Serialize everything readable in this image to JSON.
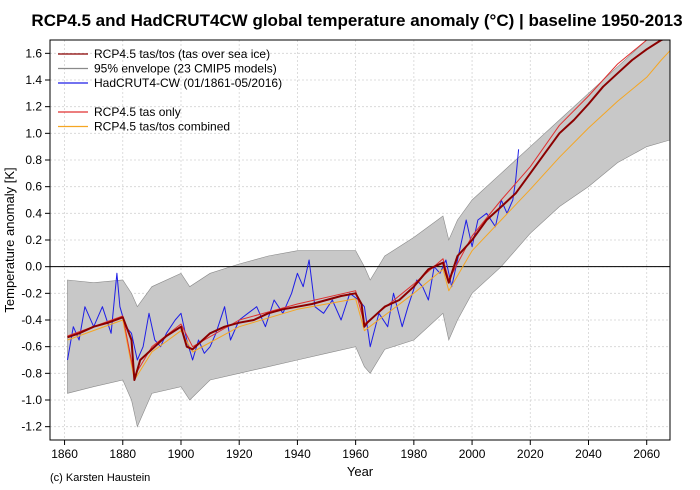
{
  "chart_data": {
    "type": "line",
    "title": "RCP4.5 and HadCRUT4CW global temperature anomaly (°C) | baseline 1950-2013",
    "xlabel": "Year",
    "ylabel": "Temperature anomaly [K]",
    "xlim": [
      1855,
      2068
    ],
    "ylim": [
      -1.3,
      1.7
    ],
    "xticks": [
      1860,
      1880,
      1900,
      1920,
      1940,
      1960,
      1980,
      2000,
      2020,
      2040,
      2060
    ],
    "yticks": [
      -1.2,
      -1.0,
      -0.8,
      -0.6,
      -0.4,
      -0.2,
      0.0,
      0.2,
      0.4,
      0.6,
      0.8,
      1.0,
      1.2,
      1.4,
      1.6
    ],
    "ytick_labels": [
      "-1.2",
      "-1.0",
      "-0.8",
      "-0.6",
      "-0.4",
      "-0.2",
      "0.0",
      "0.2",
      "0.4",
      "0.6",
      "0.8",
      "1.0",
      "1.2",
      "1.4",
      "1.6"
    ],
    "grid": true,
    "zero_line": true,
    "legend_position": "top-left",
    "credit": "(c) Karsten Haustein",
    "envelope": {
      "name": "95% envelope (23 CMIP5 models)",
      "color": "#c8c8c8",
      "x": [
        1861,
        1870,
        1880,
        1883,
        1885,
        1890,
        1900,
        1903,
        1910,
        1920,
        1930,
        1940,
        1950,
        1960,
        1963,
        1965,
        1970,
        1980,
        1990,
        1992,
        1995,
        2000,
        2010,
        2020,
        2030,
        2040,
        2050,
        2060,
        2068
      ],
      "upper": [
        -0.1,
        -0.12,
        -0.1,
        -0.2,
        -0.3,
        -0.15,
        -0.05,
        -0.15,
        -0.05,
        0.02,
        0.08,
        0.12,
        0.12,
        0.12,
        0.0,
        -0.1,
        0.08,
        0.22,
        0.38,
        0.2,
        0.35,
        0.5,
        0.7,
        0.9,
        1.1,
        1.3,
        1.5,
        1.7,
        1.7
      ],
      "lower": [
        -0.95,
        -0.9,
        -0.85,
        -1.0,
        -1.2,
        -0.95,
        -0.9,
        -1.0,
        -0.85,
        -0.8,
        -0.75,
        -0.7,
        -0.65,
        -0.6,
        -0.75,
        -0.8,
        -0.62,
        -0.55,
        -0.35,
        -0.55,
        -0.4,
        -0.2,
        0.0,
        0.25,
        0.45,
        0.6,
        0.78,
        0.9,
        0.95
      ]
    },
    "series": [
      {
        "name": "RCP4.5 tas/tos (tas over sea ice)",
        "color": "#8b0000",
        "width": 2,
        "x": [
          1861,
          1865,
          1870,
          1875,
          1880,
          1883,
          1884,
          1886,
          1890,
          1895,
          1900,
          1902,
          1904,
          1910,
          1915,
          1920,
          1925,
          1930,
          1935,
          1940,
          1945,
          1950,
          1955,
          1960,
          1962,
          1963,
          1964,
          1966,
          1970,
          1975,
          1980,
          1985,
          1990,
          1991,
          1992,
          1993,
          1995,
          2000,
          2005,
          2010,
          2015,
          2020,
          2025,
          2030,
          2035,
          2040,
          2045,
          2050,
          2055,
          2060,
          2065,
          2068
        ],
        "y": [
          -0.53,
          -0.5,
          -0.45,
          -0.42,
          -0.38,
          -0.55,
          -0.85,
          -0.7,
          -0.62,
          -0.52,
          -0.45,
          -0.6,
          -0.62,
          -0.5,
          -0.45,
          -0.42,
          -0.4,
          -0.35,
          -0.32,
          -0.3,
          -0.28,
          -0.25,
          -0.22,
          -0.2,
          -0.28,
          -0.45,
          -0.42,
          -0.38,
          -0.3,
          -0.25,
          -0.15,
          -0.02,
          0.03,
          -0.05,
          -0.12,
          -0.05,
          0.08,
          0.2,
          0.35,
          0.45,
          0.55,
          0.7,
          0.85,
          1.0,
          1.1,
          1.22,
          1.35,
          1.45,
          1.55,
          1.63,
          1.7,
          1.72
        ]
      },
      {
        "name": "RCP4.5 tas only",
        "color": "#e03030",
        "width": 1,
        "x": [
          1861,
          1880,
          1884,
          1890,
          1900,
          1904,
          1920,
          1940,
          1960,
          1963,
          1980,
          1990,
          1992,
          2000,
          2010,
          2020,
          2030,
          2040,
          2050,
          2060,
          2065,
          2068
        ],
        "y": [
          -0.52,
          -0.37,
          -0.82,
          -0.6,
          -0.43,
          -0.6,
          -0.4,
          -0.28,
          -0.18,
          -0.43,
          -0.13,
          0.06,
          -0.1,
          0.23,
          0.5,
          0.75,
          1.06,
          1.28,
          1.52,
          1.7,
          1.76,
          1.78
        ]
      },
      {
        "name": "RCP4.5 tas/tos combined",
        "color": "#f5a623",
        "width": 1,
        "x": [
          1861,
          1880,
          1884,
          1890,
          1900,
          1904,
          1920,
          1940,
          1960,
          1963,
          1980,
          1990,
          1992,
          2000,
          2010,
          2020,
          2030,
          2040,
          2050,
          2060,
          2065,
          2068
        ],
        "y": [
          -0.55,
          -0.4,
          -0.85,
          -0.64,
          -0.48,
          -0.64,
          -0.45,
          -0.32,
          -0.24,
          -0.48,
          -0.2,
          -0.02,
          -0.18,
          0.12,
          0.35,
          0.58,
          0.82,
          1.04,
          1.24,
          1.42,
          1.55,
          1.62
        ]
      },
      {
        "name": "HadCRUT4-CW (01/1861-05/2016)",
        "color": "#1e1ee6",
        "width": 1,
        "x": [
          1861,
          1863,
          1865,
          1867,
          1870,
          1873,
          1876,
          1878,
          1879,
          1881,
          1883,
          1885,
          1887,
          1889,
          1891,
          1893,
          1895,
          1898,
          1900,
          1902,
          1904,
          1906,
          1908,
          1910,
          1912,
          1915,
          1917,
          1920,
          1923,
          1926,
          1929,
          1932,
          1935,
          1938,
          1940,
          1942,
          1944,
          1946,
          1949,
          1952,
          1955,
          1958,
          1961,
          1963,
          1965,
          1968,
          1971,
          1973,
          1976,
          1978,
          1981,
          1983,
          1985,
          1987,
          1989,
          1991,
          1993,
          1995,
          1998,
          2000,
          2002,
          2005,
          2008,
          2010,
          2012,
          2014,
          2015,
          2016
        ],
        "y": [
          -0.7,
          -0.45,
          -0.55,
          -0.3,
          -0.45,
          -0.3,
          -0.5,
          -0.05,
          -0.3,
          -0.45,
          -0.5,
          -0.7,
          -0.6,
          -0.35,
          -0.55,
          -0.6,
          -0.5,
          -0.4,
          -0.35,
          -0.55,
          -0.7,
          -0.55,
          -0.65,
          -0.6,
          -0.5,
          -0.3,
          -0.55,
          -0.4,
          -0.35,
          -0.3,
          -0.45,
          -0.25,
          -0.35,
          -0.2,
          -0.05,
          -0.15,
          0.05,
          -0.3,
          -0.35,
          -0.25,
          -0.4,
          -0.2,
          -0.25,
          -0.3,
          -0.6,
          -0.35,
          -0.45,
          -0.2,
          -0.45,
          -0.3,
          -0.1,
          -0.15,
          -0.25,
          0.0,
          -0.05,
          0.05,
          -0.15,
          0.05,
          0.35,
          0.15,
          0.35,
          0.4,
          0.3,
          0.5,
          0.4,
          0.5,
          0.65,
          0.88
        ]
      }
    ]
  }
}
